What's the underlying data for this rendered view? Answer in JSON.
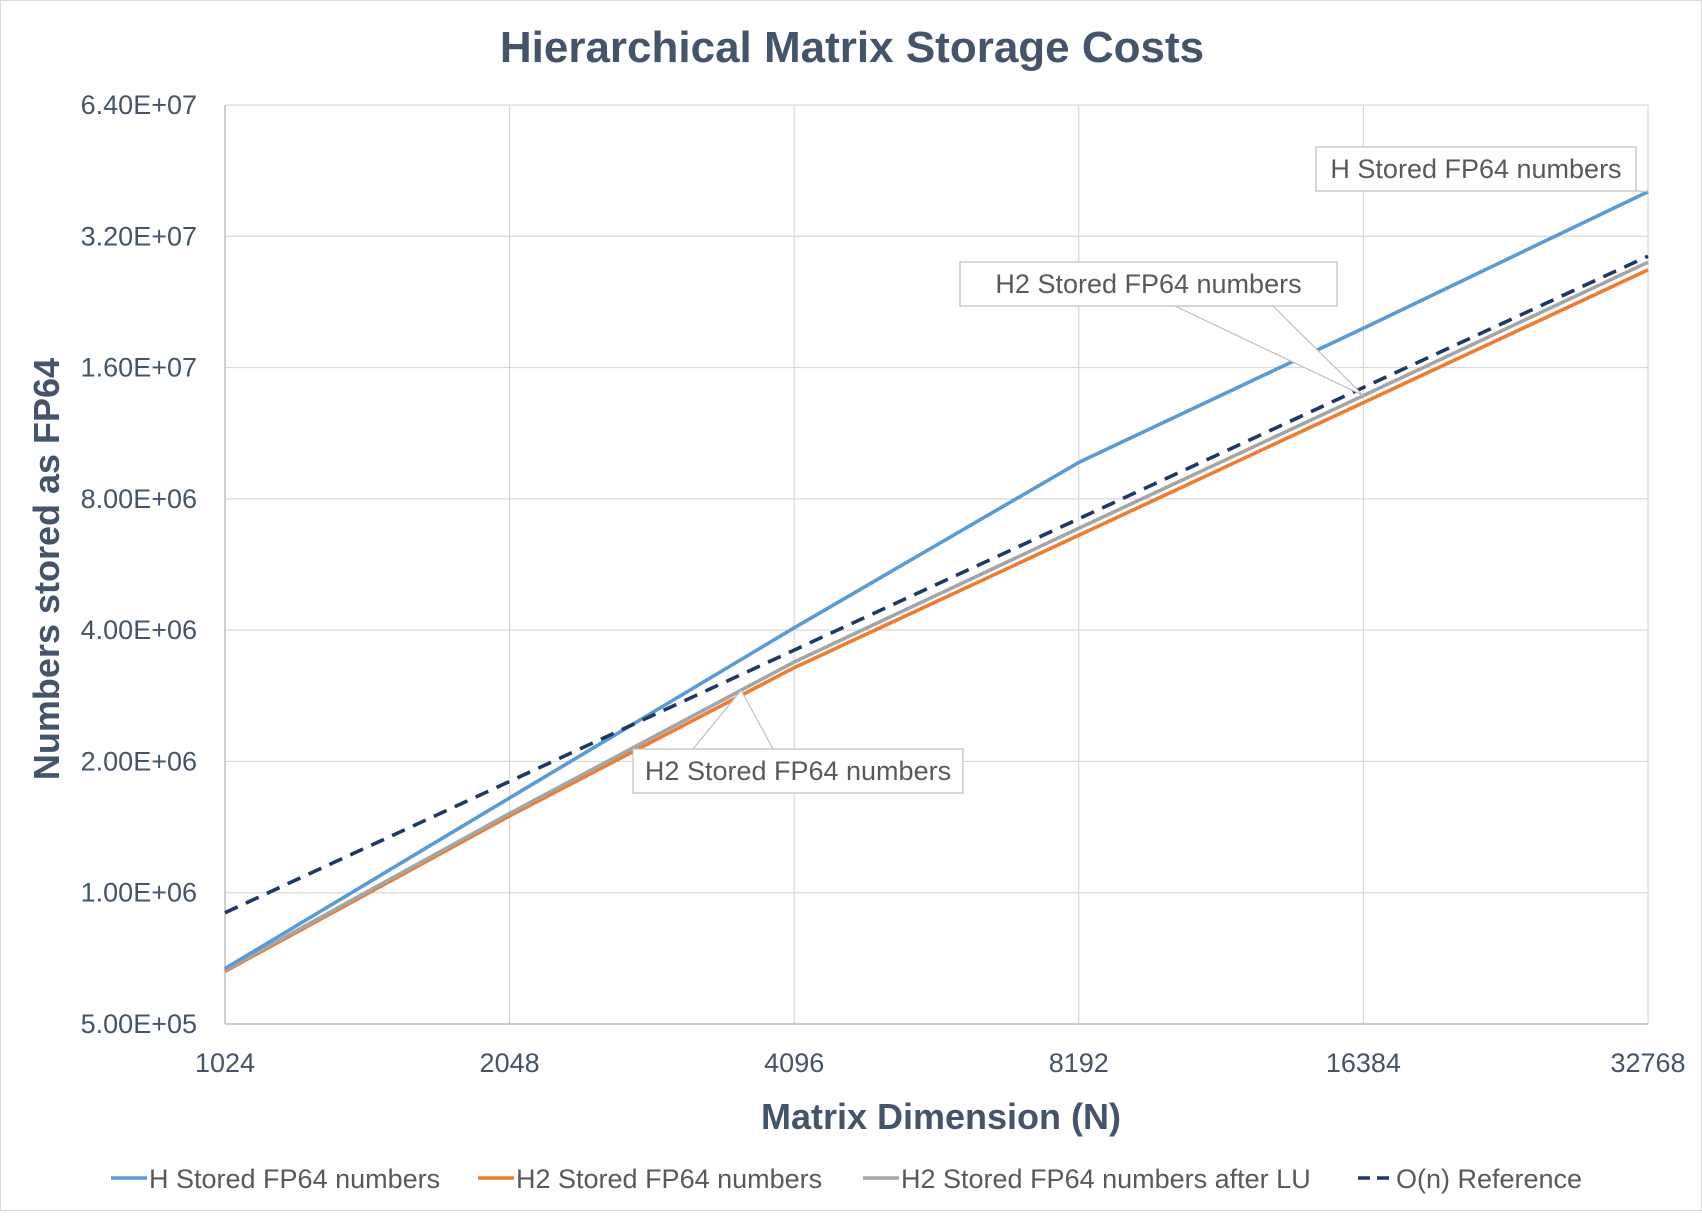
{
  "chart_data": {
    "type": "line",
    "title": "Hierarchical Matrix Storage Costs",
    "xlabel": "Matrix Dimension (N)",
    "ylabel": "Numbers stored as FP64",
    "x": [
      1024,
      2048,
      4096,
      8192,
      16384,
      32768
    ],
    "x_tick_labels": [
      "1024",
      "2048",
      "4096",
      "8192",
      "16384",
      "32768"
    ],
    "x_scale": "log2",
    "y_scale": "log2",
    "ylim": [
      500000,
      64000000
    ],
    "y_ticks": [
      500000,
      1000000,
      2000000,
      4000000,
      8000000,
      16000000,
      32000000,
      64000000
    ],
    "y_tick_labels": [
      "5.00E+05",
      "1.00E+06",
      "2.00E+06",
      "4.00E+06",
      "8.00E+06",
      "1.60E+07",
      "3.20E+07",
      "6.40E+07"
    ],
    "grid": true,
    "legend_position": "bottom",
    "series": [
      {
        "name": "H Stored FP64 numbers",
        "color": "#5b9bd5",
        "dash": "solid",
        "values": [
          670000,
          1650000,
          4050000,
          9700000,
          19700000,
          40500000
        ]
      },
      {
        "name": "H2 Stored FP64 numbers",
        "color": "#ed7d31",
        "dash": "solid",
        "values": [
          660000,
          1500000,
          3280000,
          6600000,
          13300000,
          26800000
        ]
      },
      {
        "name": "H2 Stored FP64 numbers after LU",
        "color": "#a5a5a5",
        "dash": "solid",
        "values": [
          665000,
          1520000,
          3380000,
          6850000,
          13800000,
          27900000
        ]
      },
      {
        "name": "O(n) Reference",
        "color": "#203864",
        "dash": "dashed",
        "values": [
          900000,
          1800000,
          3600000,
          7200000,
          14400000,
          28800000
        ]
      }
    ],
    "annotations": [
      {
        "text": "H Stored FP64 numbers",
        "series": 0,
        "x": 32768
      },
      {
        "text": "H2 Stored FP64 numbers",
        "series": 2,
        "x": 16384
      },
      {
        "text": "H2 Stored FP64 numbers",
        "series": 2,
        "x": 3600
      }
    ]
  }
}
